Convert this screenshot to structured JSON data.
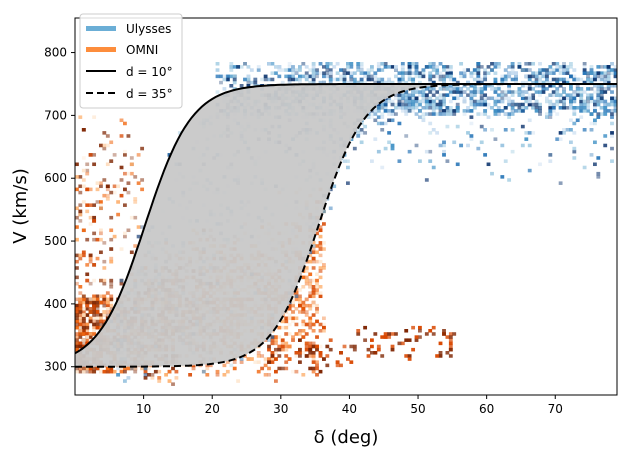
{
  "chart_data": {
    "type": "heatmap",
    "title": "",
    "xlabel": "δ (deg)",
    "ylabel": "V (km/s)",
    "xlim": [
      0,
      79
    ],
    "ylim": [
      255,
      855
    ],
    "xticks": [
      10,
      20,
      30,
      40,
      50,
      60,
      70
    ],
    "yticks": [
      300,
      400,
      500,
      600,
      700,
      800
    ],
    "legend_position": "top-left",
    "series": [
      {
        "name": "Ulysses",
        "kind": "2d-histogram",
        "color": "#6baed6",
        "cmap": [
          "#c6dbef",
          "#9ecae1",
          "#4292c6",
          "#2171b5",
          "#08306b"
        ]
      },
      {
        "name": "OMNI",
        "kind": "2d-histogram",
        "color": "#fd8d3c",
        "cmap": [
          "#fee6ce",
          "#fdae6b",
          "#f16913",
          "#d94801",
          "#7f2704"
        ]
      },
      {
        "name": "d = 10°",
        "kind": "model-curve",
        "style": "solid",
        "color": "#000000",
        "d": 10,
        "v_min": 300,
        "v_max": 750,
        "delta_center": 10.2,
        "width": 3.4
      },
      {
        "name": "d = 35°",
        "kind": "model-curve",
        "style": "dashed",
        "color": "#000000",
        "d": 35,
        "v_min": 300,
        "v_max": 750,
        "delta_center": 35.5,
        "width": 3.4
      }
    ],
    "band": {
      "between": [
        "d = 10°",
        "d = 35°"
      ],
      "color": "#c8c8c8"
    },
    "legend": [
      {
        "label": "Ulysses",
        "symbol": "patch",
        "color": "#6baed6"
      },
      {
        "label": "OMNI",
        "symbol": "patch",
        "color": "#fd8d3c"
      },
      {
        "label": "d = 10°",
        "symbol": "solid-line",
        "color": "#000000"
      },
      {
        "label": "d = 35°",
        "symbol": "dashed-line",
        "color": "#000000"
      }
    ],
    "tick_labels": {
      "x": [
        "10",
        "20",
        "30",
        "40",
        "50",
        "60",
        "70"
      ],
      "y": [
        "300",
        "400",
        "500",
        "600",
        "700",
        "800"
      ]
    }
  }
}
